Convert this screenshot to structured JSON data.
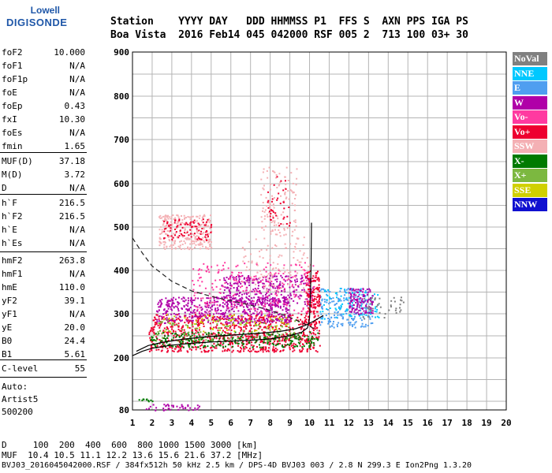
{
  "logo": {
    "line1": "Lowell",
    "line2": "DIGISONDE"
  },
  "header": {
    "row1": "Station    YYYY DAY   DDD HHMMSS P1  FFS S  AXN PPS IGA PS",
    "row2": "Boa Vista  2016 Feb14 045 042000 RSF 005 2  713 100 03+ 30"
  },
  "params": [
    {
      "k": "foF2",
      "v": "10.000"
    },
    {
      "k": "foF1",
      "v": "N/A"
    },
    {
      "k": "foF1p",
      "v": "N/A"
    },
    {
      "k": "foE",
      "v": "N/A"
    },
    {
      "k": "foEp",
      "v": "0.43"
    },
    {
      "k": "fxI",
      "v": "10.30"
    },
    {
      "k": "foEs",
      "v": "N/A"
    },
    {
      "k": "fmin",
      "v": "1.65"
    },
    {
      "k": "MUF(D)",
      "v": "37.18"
    },
    {
      "k": "M(D)",
      "v": "3.72"
    },
    {
      "k": "D",
      "v": "N/A"
    },
    {
      "k": "h`F",
      "v": "216.5"
    },
    {
      "k": "h`F2",
      "v": "216.5"
    },
    {
      "k": "h`E",
      "v": "N/A"
    },
    {
      "k": "h`Es",
      "v": "N/A"
    },
    {
      "k": "hmF2",
      "v": "263.8"
    },
    {
      "k": "hmF1",
      "v": "N/A"
    },
    {
      "k": "hmE",
      "v": "110.0"
    },
    {
      "k": "yF2",
      "v": "39.1"
    },
    {
      "k": "yF1",
      "v": "N/A"
    },
    {
      "k": "yE",
      "v": "20.0"
    },
    {
      "k": "B0",
      "v": "24.4"
    },
    {
      "k": "B1",
      "v": "5.61"
    },
    {
      "k": "C-level",
      "v": "55"
    }
  ],
  "auto": {
    "line1": "Auto:",
    "line2": "Artist5",
    "line3": "500200"
  },
  "legend": [
    {
      "label": "NoVal",
      "color": "#808080"
    },
    {
      "label": "NNE",
      "color": "#00c8ff"
    },
    {
      "label": "E",
      "color": "#4f9ef0"
    },
    {
      "label": "W",
      "color": "#b000a8"
    },
    {
      "label": "Vo-",
      "color": "#ff3aa0"
    },
    {
      "label": "Vo+",
      "color": "#ee0030"
    },
    {
      "label": "SSW",
      "color": "#f4b0b4"
    },
    {
      "label": "X-",
      "color": "#007a00"
    },
    {
      "label": "X+",
      "color": "#7cb840"
    },
    {
      "label": "SSE",
      "color": "#d0d000"
    },
    {
      "label": "NNW",
      "color": "#1010d0"
    }
  ],
  "footer": {
    "line1": "D     100  200  400  600  800 1000 1500 3000 [km]",
    "line2": "MUF  10.4 10.5 11.1 12.2 13.6 15.6 21.6 37.2 [MHz]",
    "line3": "BVJ03_2016045042000.RSF / 384fx512h 50 kHz 2.5 km / DPS-4D BVJ03 003 / 2.8 N 299.3 E Ion2Png 1.3.20"
  },
  "chart_data": {
    "type": "scatter",
    "title": "",
    "xlabel": "",
    "ylabel": "",
    "xlim": [
      1,
      20
    ],
    "ylim": [
      80,
      900
    ],
    "x_ticks": [
      1,
      2,
      3,
      4,
      5,
      6,
      7,
      8,
      9,
      10,
      11,
      12,
      13,
      14,
      15,
      16,
      17,
      18,
      19,
      20
    ],
    "y_ticks": [
      80,
      200,
      300,
      400,
      500,
      600,
      700,
      800,
      900
    ],
    "grid": true,
    "legend_placement": "right",
    "trace_profile": [
      [
        1.0,
        205
      ],
      [
        1.5,
        215
      ],
      [
        2.0,
        222
      ],
      [
        3.0,
        229
      ],
      [
        4.0,
        233
      ],
      [
        5.0,
        236
      ],
      [
        6.0,
        238
      ],
      [
        7.0,
        240
      ],
      [
        8.0,
        243
      ],
      [
        9.0,
        250
      ],
      [
        9.6,
        258
      ],
      [
        9.9,
        268
      ],
      [
        10.0,
        290
      ],
      [
        10.05,
        350
      ],
      [
        10.08,
        420
      ],
      [
        10.1,
        510
      ]
    ],
    "o_trace": [
      [
        1.2,
        215
      ],
      [
        1.8,
        228
      ],
      [
        2.5,
        235
      ],
      [
        3.5,
        242
      ],
      [
        4.5,
        247
      ],
      [
        5.5,
        250
      ],
      [
        6.5,
        253
      ],
      [
        7.5,
        256
      ],
      [
        8.5,
        260
      ],
      [
        9.3,
        266
      ],
      [
        9.8,
        274
      ],
      [
        10.2,
        283
      ],
      [
        10.7,
        296
      ]
    ],
    "dashed_curve": [
      [
        1.0,
        475
      ],
      [
        1.5,
        440
      ],
      [
        2.0,
        410
      ],
      [
        3.0,
        375
      ],
      [
        4.0,
        353
      ],
      [
        5.0,
        340
      ],
      [
        6.0,
        330
      ],
      [
        7.0,
        320
      ],
      [
        8.0,
        308
      ],
      [
        9.0,
        292
      ],
      [
        10.0,
        272
      ],
      [
        10.4,
        262
      ]
    ],
    "regions": [
      {
        "color": "#ee0030",
        "x": [
          1.8,
          10.5
        ],
        "y": [
          215,
          300
        ],
        "n": 900
      },
      {
        "color": "#b000a8",
        "x": [
          2.2,
          9.0
        ],
        "y": [
          280,
          340
        ],
        "n": 500
      },
      {
        "color": "#b000a8",
        "x": [
          5.5,
          10.2
        ],
        "y": [
          320,
          390
        ],
        "n": 350
      },
      {
        "color": "#ff3aa0",
        "x": [
          4.0,
          10.3
        ],
        "y": [
          300,
          420
        ],
        "n": 250
      },
      {
        "color": "#007a00",
        "x": [
          1.9,
          10.4
        ],
        "y": [
          225,
          260
        ],
        "n": 280
      },
      {
        "color": "#7cb840",
        "x": [
          2.0,
          9.5
        ],
        "y": [
          240,
          290
        ],
        "n": 120
      },
      {
        "color": "#d0d000",
        "x": [
          2.5,
          9.0
        ],
        "y": [
          260,
          300
        ],
        "n": 60
      },
      {
        "color": "#4f9ef0",
        "x": [
          10.5,
          13.2
        ],
        "y": [
          270,
          360
        ],
        "n": 200
      },
      {
        "color": "#00c8ff",
        "x": [
          10.5,
          13.5
        ],
        "y": [
          290,
          360
        ],
        "n": 80
      },
      {
        "color": "#b000a8",
        "x": [
          12.0,
          13.2
        ],
        "y": [
          300,
          360
        ],
        "n": 120
      },
      {
        "color": "#808080",
        "x": [
          12.5,
          14.8
        ],
        "y": [
          290,
          340
        ],
        "n": 40
      },
      {
        "color": "#f4b0b4",
        "x": [
          2.3,
          5.0
        ],
        "y": [
          450,
          530
        ],
        "n": 260
      },
      {
        "color": "#ee0030",
        "x": [
          2.5,
          5.0
        ],
        "y": [
          470,
          520
        ],
        "n": 90
      },
      {
        "color": "#f4b0b4",
        "x": [
          7.5,
          9.4
        ],
        "y": [
          480,
          640
        ],
        "n": 120
      },
      {
        "color": "#ee0030",
        "x": [
          7.8,
          9.0
        ],
        "y": [
          500,
          620
        ],
        "n": 40
      },
      {
        "color": "#f4b0b4",
        "x": [
          6.5,
          10.0
        ],
        "y": [
          350,
          480
        ],
        "n": 120
      },
      {
        "color": "#ee0030",
        "x": [
          9.8,
          10.5
        ],
        "y": [
          300,
          400
        ],
        "n": 120
      },
      {
        "color": "#b000a8",
        "x": [
          1.5,
          4.5
        ],
        "y": [
          80,
          95
        ],
        "n": 40
      },
      {
        "color": "#007a00",
        "x": [
          1.3,
          2.2
        ],
        "y": [
          100,
          108
        ],
        "n": 10
      }
    ]
  }
}
